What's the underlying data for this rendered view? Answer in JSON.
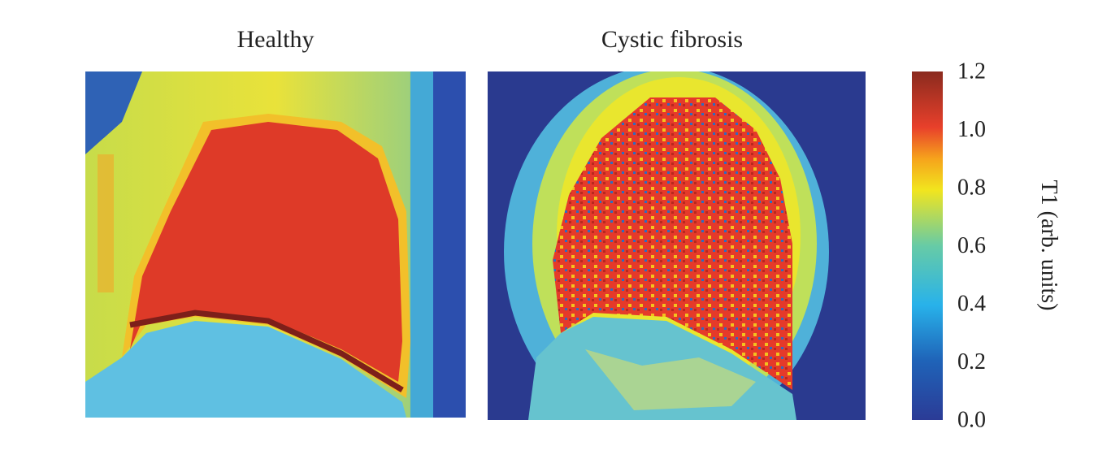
{
  "panels": [
    {
      "title": "Healthy"
    },
    {
      "title": "Cystic fibrosis"
    }
  ],
  "colorbar": {
    "label": "T1 (arb. units)",
    "lim": [
      0,
      1.2
    ],
    "ticks": [
      {
        "value": 0,
        "label": "0.0"
      },
      0.2,
      0.4,
      0.6,
      0.8,
      {
        "value": 1,
        "label": "1.0"
      },
      1.2
    ]
  }
}
